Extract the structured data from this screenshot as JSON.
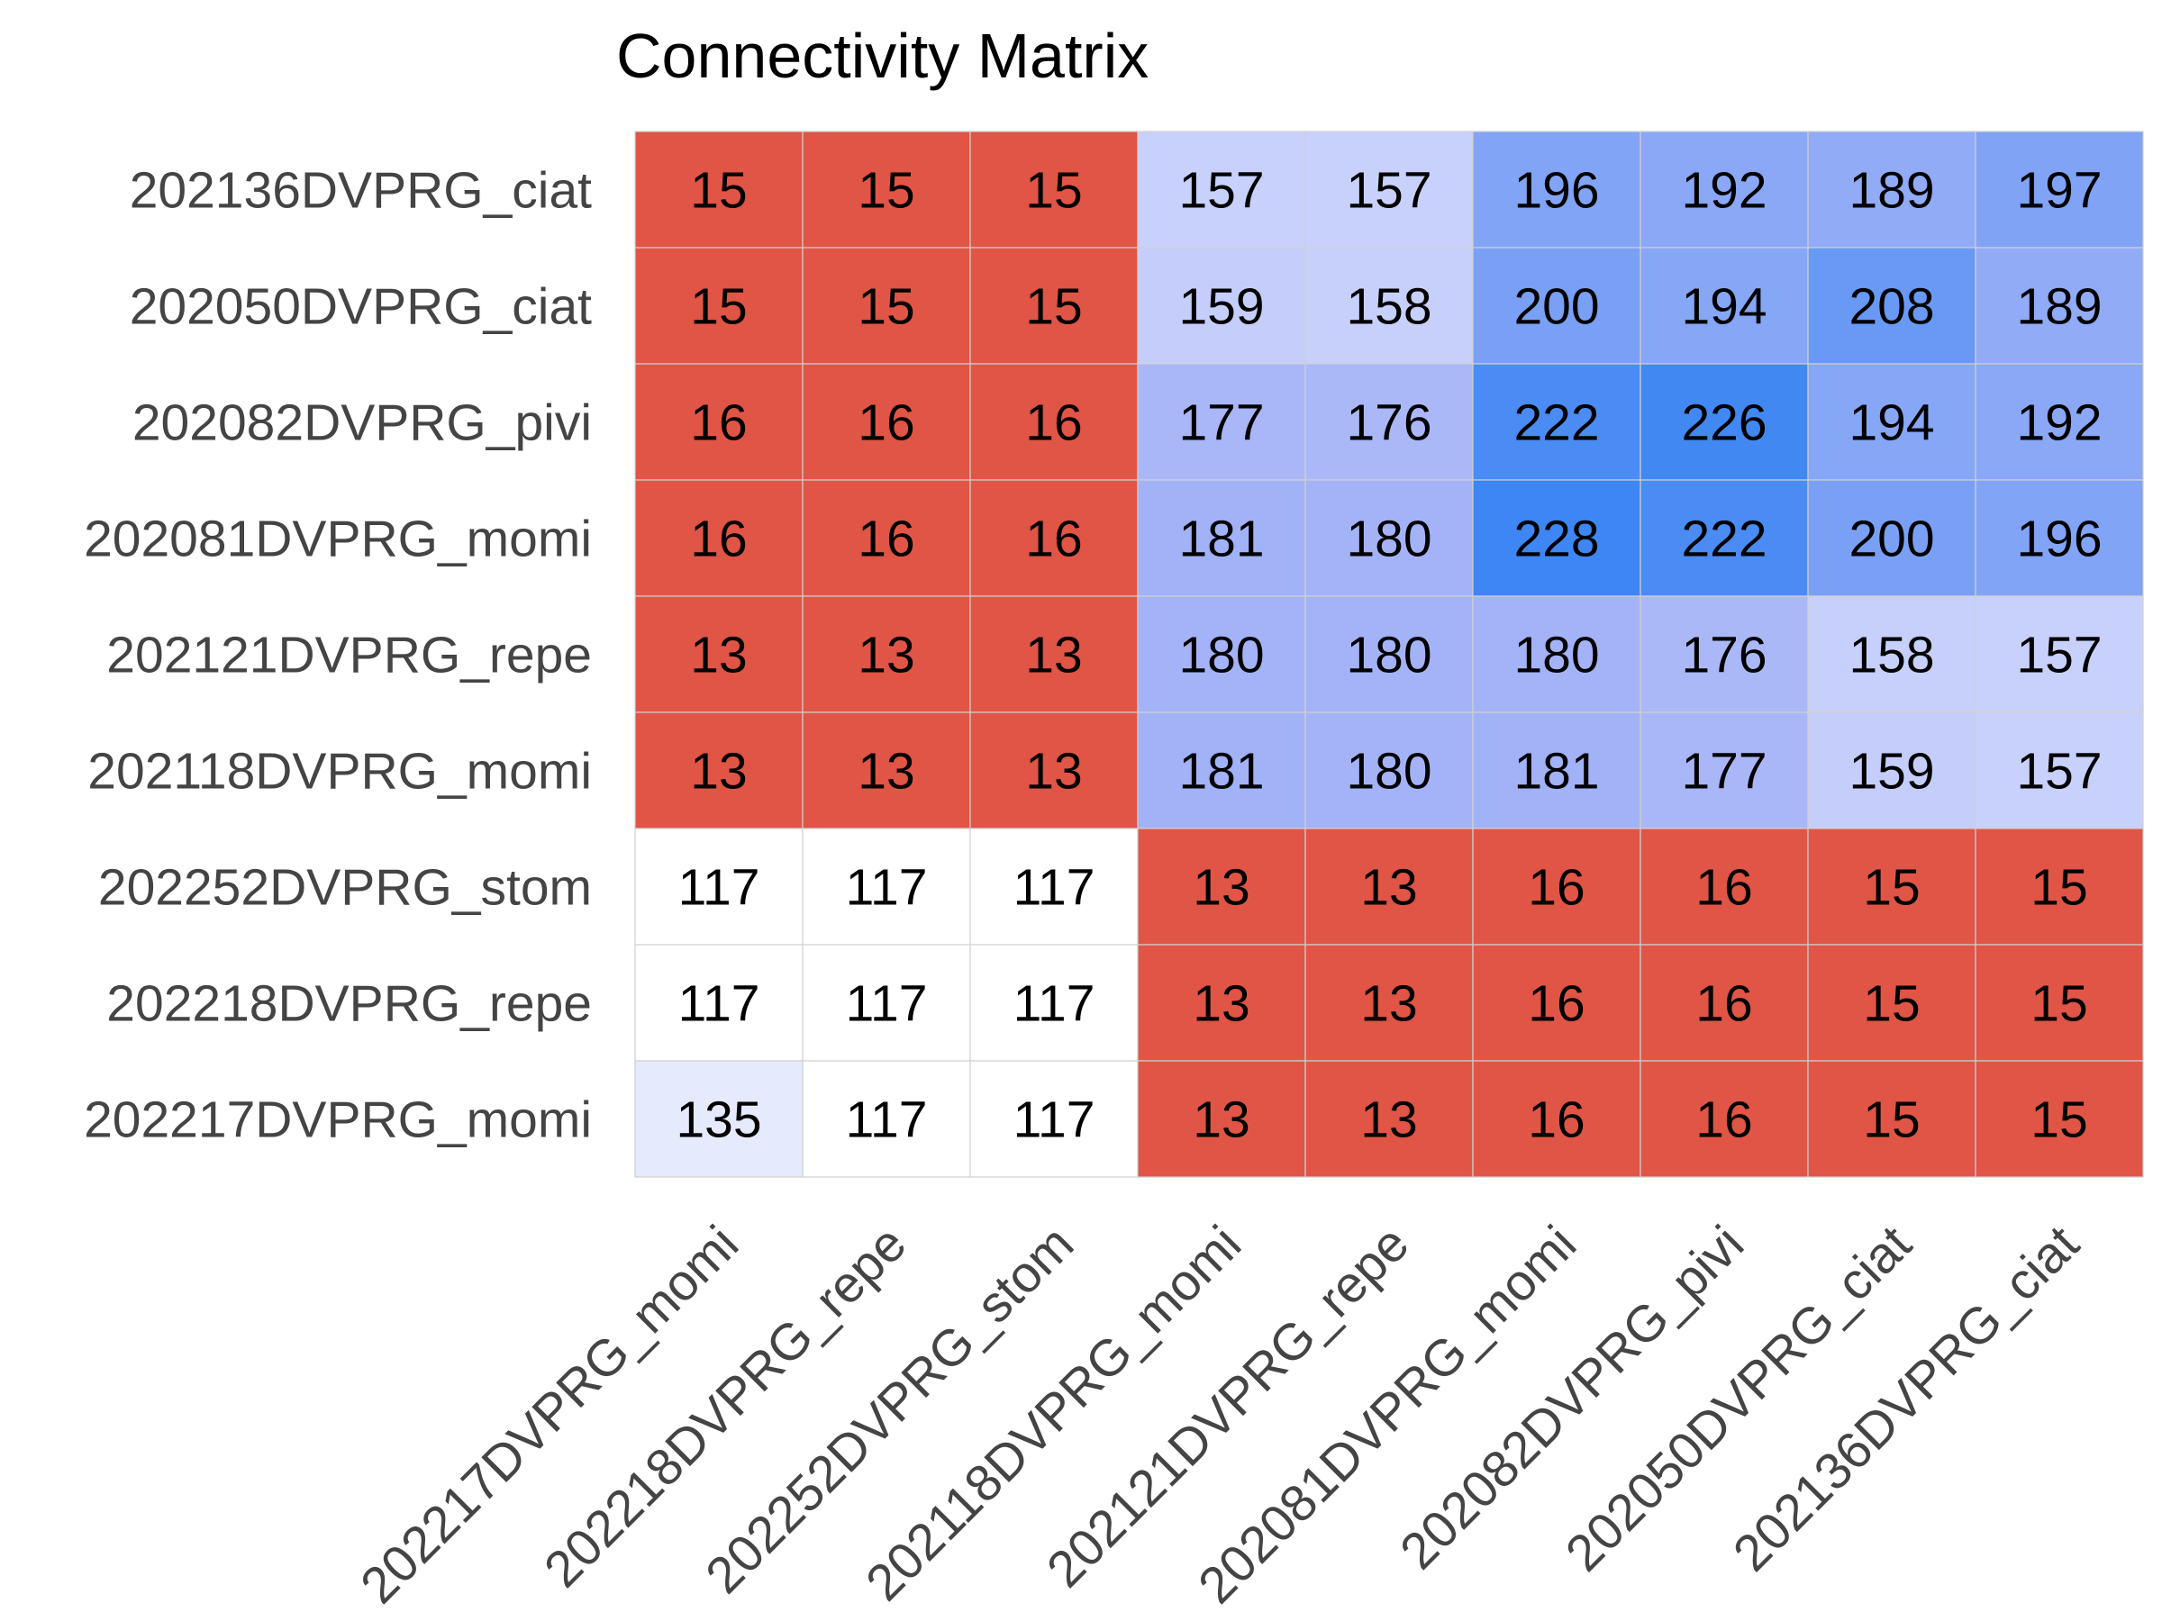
{
  "chart_data": {
    "type": "heatmap",
    "title": "Connectivity Matrix",
    "xlabel": "",
    "ylabel": "",
    "x_labels": [
      "202217DVPRG_momi",
      "202218DVPRG_repe",
      "202252DVPRG_stom",
      "202118DVPRG_momi",
      "202121DVPRG_repe",
      "202081DVPRG_momi",
      "202082DVPRG_pivi",
      "202050DVPRG_ciat",
      "202136DVPRG_ciat"
    ],
    "y_labels": [
      "202136DVPRG_ciat",
      "202050DVPRG_ciat",
      "202082DVPRG_pivi",
      "202081DVPRG_momi",
      "202121DVPRG_repe",
      "202118DVPRG_momi",
      "202252DVPRG_stom",
      "202218DVPRG_repe",
      "202217DVPRG_momi"
    ],
    "values": [
      [
        15,
        15,
        15,
        157,
        157,
        196,
        192,
        189,
        197
      ],
      [
        15,
        15,
        15,
        159,
        158,
        200,
        194,
        208,
        189
      ],
      [
        16,
        16,
        16,
        177,
        176,
        222,
        226,
        194,
        192
      ],
      [
        16,
        16,
        16,
        181,
        180,
        228,
        222,
        200,
        196
      ],
      [
        13,
        13,
        13,
        180,
        180,
        180,
        176,
        158,
        157
      ],
      [
        13,
        13,
        13,
        181,
        180,
        181,
        177,
        159,
        157
      ],
      [
        117,
        117,
        117,
        13,
        13,
        16,
        16,
        15,
        15
      ],
      [
        117,
        117,
        117,
        13,
        13,
        16,
        16,
        15,
        15
      ],
      [
        135,
        117,
        117,
        13,
        13,
        16,
        16,
        15,
        15
      ]
    ],
    "colors": {
      "low": "#e05545",
      "blue_light": "#c8d1fb",
      "blue_mid": "#a4b3f7",
      "blue_strong": "#3d86f3",
      "white": "#ffffff",
      "grid": "#d0d0d0",
      "tick_text": "#444444",
      "cell_text": "#000000"
    },
    "legend": "none",
    "grid": true
  }
}
